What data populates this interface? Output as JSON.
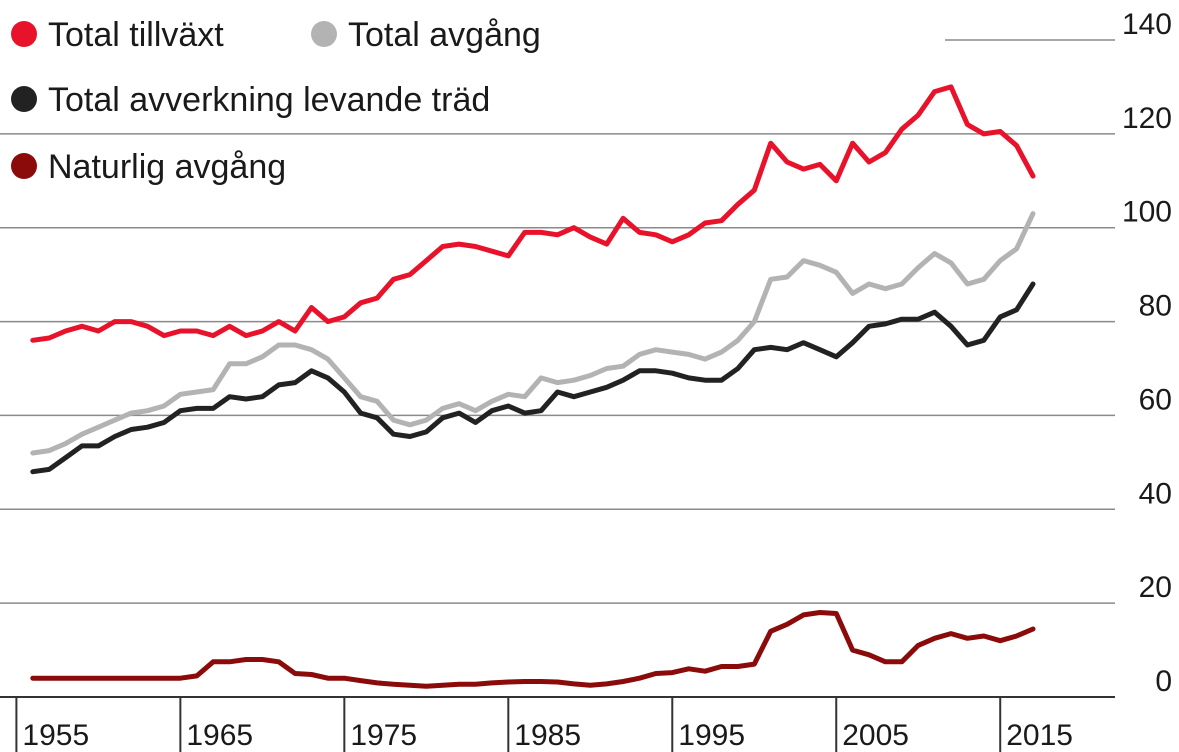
{
  "chart_data": {
    "type": "line",
    "x": [
      1956,
      1957,
      1958,
      1959,
      1960,
      1961,
      1962,
      1963,
      1964,
      1965,
      1966,
      1967,
      1968,
      1969,
      1970,
      1971,
      1972,
      1973,
      1974,
      1975,
      1976,
      1977,
      1978,
      1979,
      1980,
      1981,
      1982,
      1983,
      1984,
      1985,
      1986,
      1987,
      1988,
      1989,
      1990,
      1991,
      1992,
      1993,
      1994,
      1995,
      1996,
      1997,
      1998,
      1999,
      2000,
      2001,
      2002,
      2003,
      2004,
      2005,
      2006,
      2007,
      2008,
      2009,
      2010,
      2011,
      2012,
      2013,
      2014,
      2015,
      2016,
      2017
    ],
    "series": [
      {
        "name": "Total tillväxt",
        "color": "#e8132a",
        "values": [
          76,
          76.5,
          78,
          79,
          78,
          80,
          80,
          79,
          77,
          78,
          78,
          77,
          79,
          77,
          78,
          80,
          78,
          83,
          80,
          81,
          84,
          85,
          89,
          90,
          93,
          96,
          96.5,
          96,
          95,
          94,
          99,
          99,
          98.5,
          100,
          98,
          96.5,
          102,
          99,
          98.5,
          97,
          98.5,
          101,
          101.5,
          105,
          108,
          118,
          114,
          112.5,
          113.5,
          110,
          118,
          114,
          116,
          121,
          124,
          129,
          130,
          122,
          120,
          120.5,
          117.5,
          111
        ]
      },
      {
        "name": "Total avgång",
        "color": "#b3b3b3",
        "values": [
          52,
          52.5,
          54,
          56,
          57.5,
          59,
          60.5,
          61,
          62,
          64.5,
          65,
          65.5,
          71,
          71,
          72.5,
          75,
          75,
          74,
          72,
          68,
          64,
          63,
          59,
          58,
          59,
          61.5,
          62.5,
          61,
          63,
          64.5,
          64,
          68,
          67,
          67.5,
          68.5,
          70,
          70.5,
          73,
          74,
          73.5,
          73,
          72,
          73.5,
          76,
          80,
          89,
          89.5,
          93,
          92,
          90.5,
          86,
          88,
          87,
          88,
          91.5,
          94.5,
          92.5,
          88,
          89,
          93,
          95.5,
          103
        ]
      },
      {
        "name": "Total avverkning levande träd",
        "color": "#222222",
        "values": [
          48,
          48.5,
          51,
          53.5,
          53.5,
          55.5,
          57,
          57.5,
          58.5,
          61,
          61.5,
          61.5,
          64,
          63.5,
          64,
          66.5,
          67,
          69.5,
          68,
          65,
          60.5,
          59.5,
          56,
          55.5,
          56.5,
          59.5,
          60.5,
          58.5,
          61,
          62,
          60.5,
          61,
          65,
          64,
          65,
          66,
          67.5,
          69.5,
          69.5,
          69,
          68,
          67.5,
          67.5,
          70,
          74,
          74.5,
          74,
          75.5,
          74,
          72.5,
          75.5,
          79,
          79.5,
          80.5,
          80.5,
          82,
          79,
          75,
          76,
          81,
          82.5,
          88
        ]
      },
      {
        "name": "Naturlig avgång",
        "color": "#8b0a0a",
        "values": [
          4,
          4,
          4,
          4,
          4,
          4,
          4,
          4,
          4,
          4,
          4.5,
          7.5,
          7.5,
          8,
          8,
          7.5,
          5,
          4.8,
          4,
          4,
          3.5,
          3,
          2.7,
          2.5,
          2.3,
          2.5,
          2.7,
          2.7,
          3,
          3.2,
          3.3,
          3.3,
          3.2,
          2.8,
          2.5,
          2.8,
          3.3,
          4,
          5,
          5.2,
          6,
          5.5,
          6.5,
          6.5,
          7,
          14,
          15.5,
          17.5,
          18,
          17.8,
          10,
          9,
          7.5,
          7.5,
          11,
          12.5,
          13.5,
          12.5,
          13,
          12,
          13,
          14.5
        ]
      }
    ],
    "xlim": [
      1954,
      2022
    ],
    "xticks": [
      1955,
      1965,
      1975,
      1985,
      1995,
      2005,
      2015
    ],
    "ylim": [
      0,
      140
    ],
    "yticks": [
      0,
      20,
      40,
      60,
      80,
      100,
      120,
      140
    ],
    "grid": true
  }
}
